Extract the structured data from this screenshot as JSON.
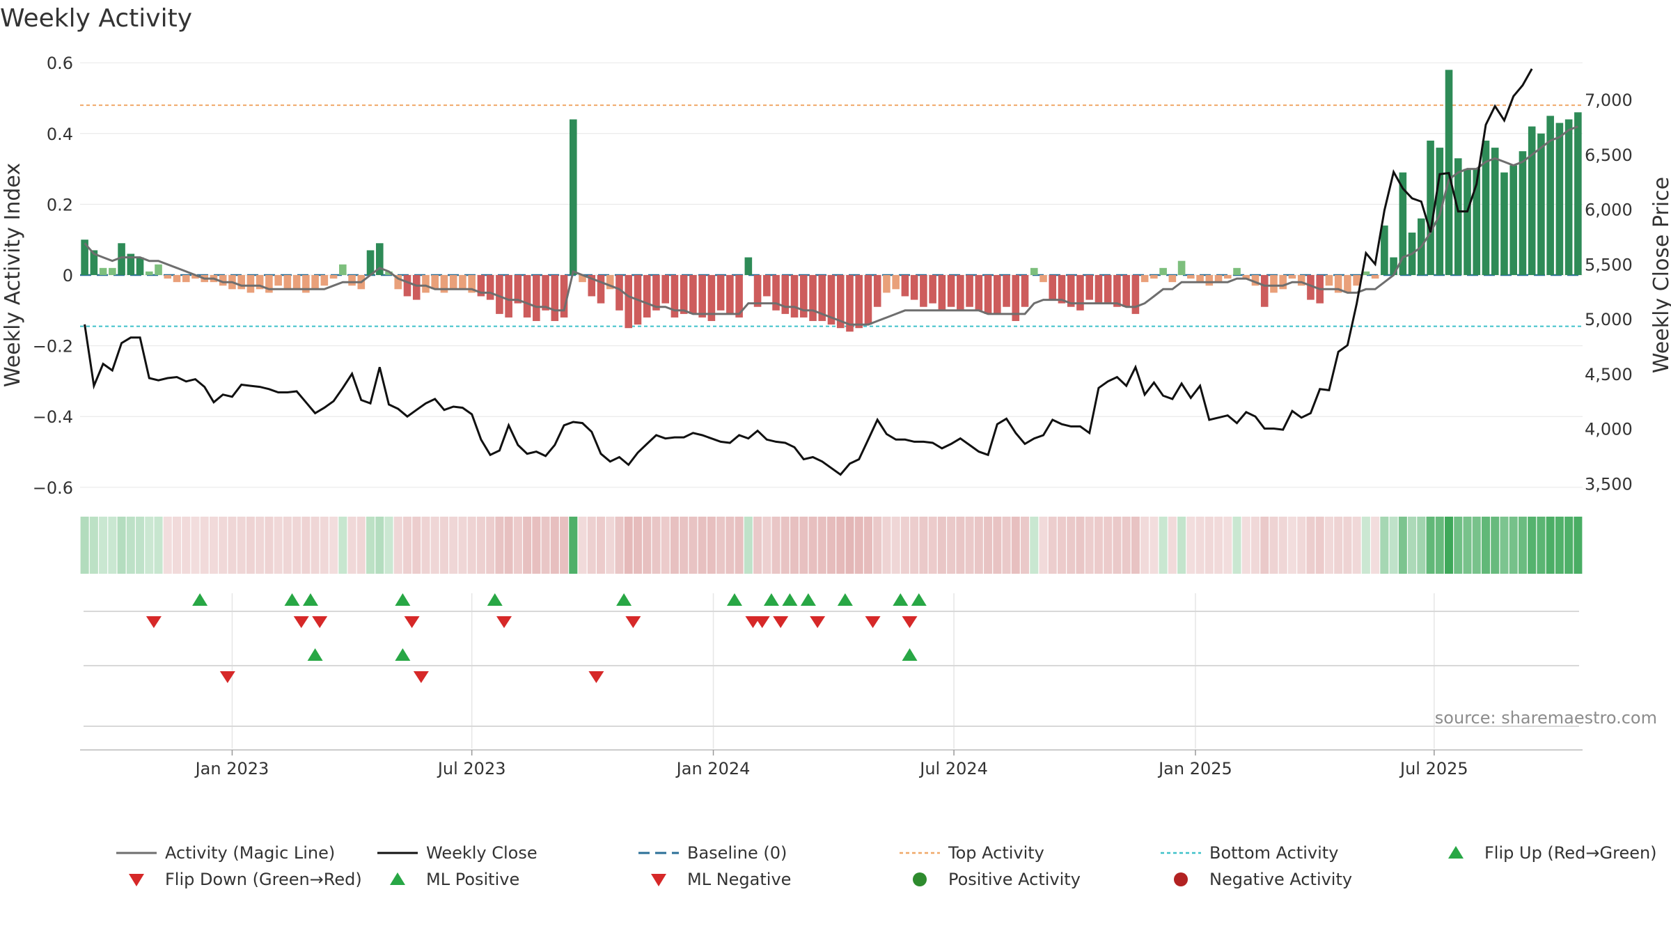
{
  "chart_data": {
    "type": "bar",
    "title": "Weekly Activity",
    "ylabel": "Weekly Activity Index",
    "y2label": "Weekly Close Price",
    "ylim": [
      -0.62,
      0.62
    ],
    "y2lim": [
      3400,
      7400
    ],
    "y_ticks": [
      0.6,
      0.4,
      0.2,
      0,
      -0.2,
      -0.4,
      -0.6
    ],
    "y_tick_labels": [
      "0.6",
      "0.4",
      "0.2",
      "0",
      "−0.2",
      "−0.4",
      "−0.6"
    ],
    "y2_ticks": [
      7000,
      6500,
      6000,
      5500,
      5000,
      4500,
      4000,
      3500
    ],
    "y2_tick_labels": [
      "7,000",
      "6,500",
      "6,000",
      "5,500",
      "5,000",
      "4,500",
      "4,000",
      "3,500"
    ],
    "x_start_week": -16.5,
    "x_ticks": [
      {
        "label": "Jan 2023",
        "week": 0
      },
      {
        "label": "Jul 2023",
        "week": 26
      },
      {
        "label": "Jan 2024",
        "week": 52.2
      },
      {
        "label": "Jul 2024",
        "week": 78.3
      },
      {
        "label": "Jan 2025",
        "week": 104.5
      },
      {
        "label": "Jul 2025",
        "week": 130.4
      }
    ],
    "top_activity": 0.48,
    "bottom_activity": -0.145,
    "baseline": 0,
    "activity_values": [
      0.1,
      0.07,
      0.02,
      0.02,
      0.09,
      0.06,
      0.05,
      0.01,
      0.03,
      -0.01,
      -0.02,
      -0.02,
      -0.01,
      -0.02,
      -0.02,
      -0.03,
      -0.04,
      -0.04,
      -0.05,
      -0.04,
      -0.05,
      -0.03,
      -0.04,
      -0.04,
      -0.05,
      -0.04,
      -0.03,
      -0.01,
      0.03,
      -0.03,
      -0.04,
      0.07,
      0.09,
      0.01,
      -0.04,
      -0.06,
      -0.07,
      -0.05,
      -0.04,
      -0.05,
      -0.04,
      -0.04,
      -0.05,
      -0.06,
      -0.07,
      -0.11,
      -0.12,
      -0.08,
      -0.12,
      -0.13,
      -0.1,
      -0.13,
      -0.12,
      0.44,
      -0.02,
      -0.06,
      -0.08,
      -0.04,
      -0.1,
      -0.15,
      -0.14,
      -0.12,
      -0.1,
      -0.08,
      -0.12,
      -0.11,
      -0.11,
      -0.12,
      -0.13,
      -0.1,
      -0.11,
      -0.12,
      0.05,
      -0.09,
      -0.06,
      -0.1,
      -0.11,
      -0.12,
      -0.12,
      -0.13,
      -0.13,
      -0.14,
      -0.15,
      -0.16,
      -0.15,
      -0.14,
      -0.09,
      -0.05,
      -0.04,
      -0.06,
      -0.07,
      -0.09,
      -0.08,
      -0.1,
      -0.09,
      -0.1,
      -0.09,
      -0.1,
      -0.11,
      -0.11,
      -0.09,
      -0.13,
      -0.09,
      0.02,
      -0.02,
      -0.07,
      -0.08,
      -0.09,
      -0.1,
      -0.07,
      -0.08,
      -0.08,
      -0.09,
      -0.09,
      -0.11,
      -0.02,
      -0.01,
      0.02,
      -0.02,
      0.04,
      -0.01,
      -0.02,
      -0.03,
      -0.02,
      -0.01,
      0.02,
      -0.01,
      -0.03,
      -0.09,
      -0.05,
      -0.04,
      -0.01,
      -0.03,
      -0.07,
      -0.08,
      -0.03,
      -0.05,
      -0.05,
      -0.03,
      0.01,
      -0.01,
      0.14,
      0.05,
      0.29,
      0.12,
      0.16,
      0.38,
      0.36,
      0.58,
      0.33,
      0.3,
      0.3,
      0.38,
      0.36,
      0.29,
      0.31,
      0.35,
      0.42,
      0.4,
      0.45,
      0.43,
      0.44,
      0.46
    ],
    "magic_line_values": [
      0.09,
      0.06,
      0.05,
      0.04,
      0.05,
      0.05,
      0.05,
      0.04,
      0.04,
      0.03,
      0.02,
      0.01,
      0.0,
      -0.01,
      -0.01,
      -0.02,
      -0.02,
      -0.03,
      -0.03,
      -0.03,
      -0.04,
      -0.04,
      -0.04,
      -0.04,
      -0.04,
      -0.04,
      -0.04,
      -0.03,
      -0.02,
      -0.02,
      -0.02,
      0.0,
      0.02,
      0.01,
      -0.01,
      -0.02,
      -0.03,
      -0.03,
      -0.04,
      -0.04,
      -0.04,
      -0.04,
      -0.04,
      -0.05,
      -0.05,
      -0.06,
      -0.07,
      -0.07,
      -0.08,
      -0.09,
      -0.09,
      -0.1,
      -0.1,
      0.01,
      0.0,
      -0.01,
      -0.02,
      -0.03,
      -0.04,
      -0.06,
      -0.07,
      -0.08,
      -0.09,
      -0.09,
      -0.1,
      -0.1,
      -0.11,
      -0.11,
      -0.11,
      -0.11,
      -0.11,
      -0.11,
      -0.08,
      -0.08,
      -0.08,
      -0.08,
      -0.09,
      -0.09,
      -0.1,
      -0.1,
      -0.11,
      -0.12,
      -0.13,
      -0.14,
      -0.14,
      -0.14,
      -0.13,
      -0.12,
      -0.11,
      -0.1,
      -0.1,
      -0.1,
      -0.1,
      -0.1,
      -0.1,
      -0.1,
      -0.1,
      -0.1,
      -0.11,
      -0.11,
      -0.11,
      -0.11,
      -0.11,
      -0.08,
      -0.07,
      -0.07,
      -0.07,
      -0.08,
      -0.08,
      -0.08,
      -0.08,
      -0.08,
      -0.08,
      -0.09,
      -0.09,
      -0.08,
      -0.06,
      -0.04,
      -0.04,
      -0.02,
      -0.02,
      -0.02,
      -0.02,
      -0.02,
      -0.02,
      -0.01,
      -0.01,
      -0.02,
      -0.03,
      -0.03,
      -0.03,
      -0.02,
      -0.02,
      -0.03,
      -0.04,
      -0.04,
      -0.04,
      -0.05,
      -0.05,
      -0.04,
      -0.04,
      -0.02,
      0.0,
      0.05,
      0.06,
      0.08,
      0.12,
      0.17,
      0.27,
      0.29,
      0.3,
      0.3,
      0.32,
      0.33,
      0.32,
      0.31,
      0.32,
      0.34,
      0.36,
      0.38,
      0.39,
      0.41,
      0.42
    ],
    "weekly_close_values": [
      4950,
      4390,
      4590,
      4530,
      4780,
      4830,
      4830,
      4460,
      4440,
      4460,
      4470,
      4430,
      4450,
      4380,
      4240,
      4310,
      4290,
      4400,
      4390,
      4380,
      4360,
      4330,
      4330,
      4340,
      4240,
      4140,
      4190,
      4250,
      4370,
      4500,
      4260,
      4230,
      4560,
      4220,
      4180,
      4110,
      4170,
      4230,
      4270,
      4170,
      4200,
      4190,
      4130,
      3900,
      3760,
      3800,
      4030,
      3850,
      3770,
      3790,
      3750,
      3850,
      4030,
      4060,
      4050,
      3970,
      3770,
      3700,
      3740,
      3670,
      3780,
      3860,
      3940,
      3910,
      3920,
      3920,
      3960,
      3940,
      3910,
      3880,
      3870,
      3940,
      3910,
      3980,
      3900,
      3880,
      3870,
      3830,
      3720,
      3740,
      3700,
      3640,
      3580,
      3680,
      3720,
      3900,
      4080,
      3950,
      3900,
      3900,
      3880,
      3880,
      3870,
      3820,
      3860,
      3910,
      3850,
      3790,
      3760,
      4040,
      4090,
      3960,
      3860,
      3910,
      3940,
      4080,
      4040,
      4020,
      4020,
      3960,
      4370,
      4430,
      4470,
      4390,
      4560,
      4310,
      4420,
      4300,
      4270,
      4410,
      4280,
      4390,
      4080,
      4100,
      4120,
      4050,
      4150,
      4110,
      4000,
      4000,
      3990,
      4160,
      4100,
      4140,
      4360,
      4350,
      4700,
      4760,
      5140,
      5600,
      5500,
      5990,
      6340,
      6190,
      6100,
      6070,
      5790,
      6320,
      6330,
      5980,
      5980,
      6230,
      6770,
      6940,
      6810,
      7030,
      7130,
      7280
    ],
    "heat_strip": "one shaded cell per week: green = positive activity, red = negative activity",
    "flip_up_weeks": [
      -3.5,
      6.5,
      8.5,
      18.5,
      28.5,
      42.5,
      54.5,
      58.5,
      60.5,
      62.5,
      66.5,
      72.5,
      74.5
    ],
    "flip_down_weeks": [
      -8.5,
      7.5,
      9.5,
      19.5,
      29.5,
      43.5,
      56.5,
      57.5,
      59.5,
      63.5,
      69.5,
      73.5
    ],
    "ml_positive_weeks": [
      9.0,
      18.5,
      73.5
    ],
    "ml_negative_weeks": [
      -0.5,
      20.5,
      39.5
    ],
    "legend": [
      {
        "label": "Activity (Magic Line)",
        "kind": "line",
        "color": "#6e6e6e",
        "dash": "solid"
      },
      {
        "label": "Weekly Close",
        "kind": "line",
        "color": "#111111",
        "dash": "solid"
      },
      {
        "label": "Baseline (0)",
        "kind": "line",
        "color": "#2a6f97",
        "dash": "long"
      },
      {
        "label": "Top Activity",
        "kind": "line",
        "color": "#f0a868",
        "dash": "dot"
      },
      {
        "label": "Bottom Activity",
        "kind": "line",
        "color": "#3fc1c9",
        "dash": "dot"
      },
      {
        "label": "Flip Up (Red→Green)",
        "kind": "tri-up",
        "color": "#28a745"
      },
      {
        "label": "Flip Down (Green→Red)",
        "kind": "tri-down",
        "color": "#d62828"
      },
      {
        "label": "ML Positive",
        "kind": "tri-up",
        "color": "#28a745"
      },
      {
        "label": "ML Negative",
        "kind": "tri-down",
        "color": "#d62828"
      },
      {
        "label": "Positive Activity",
        "kind": "dot",
        "color": "#2e8b2e"
      },
      {
        "label": "Negative Activity",
        "kind": "dot",
        "color": "#b22222"
      }
    ],
    "source": "source: sharemaestro.com"
  },
  "colors": {
    "pos_strong": "#2e8b57",
    "pos_light": "#7dbf7d",
    "neg_strong": "#cd5c5c",
    "neg_light": "#e9a07a",
    "magic_line": "#6e6e6e",
    "close_line": "#111111",
    "baseline": "#2a6f97",
    "top": "#f0a868",
    "bottom": "#3fc1c9",
    "tri_up": "#28a745",
    "tri_down": "#d62828",
    "grid": "#e6e6e6",
    "axis": "#cccccc"
  }
}
